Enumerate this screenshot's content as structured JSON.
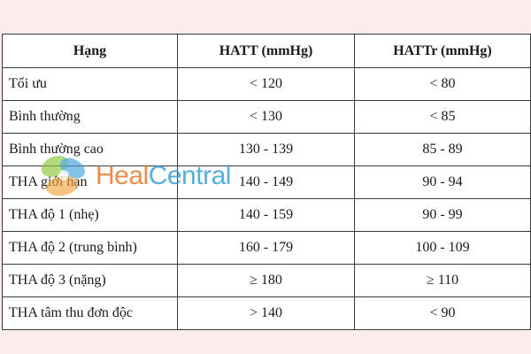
{
  "table": {
    "headers": [
      "Hạng",
      "HATT (mmHg)",
      "HATTr (mmHg)"
    ],
    "rows": [
      {
        "category": "Tối ưu",
        "systolic": "< 120",
        "diastolic": "< 80"
      },
      {
        "category": "Bình thường",
        "systolic": "< 130",
        "diastolic": "< 85"
      },
      {
        "category": "Bình thường cao",
        "systolic": "130 - 139",
        "diastolic": "85 - 89"
      },
      {
        "category": "THA giới hạn",
        "systolic": "140 - 149",
        "diastolic": "90 - 94"
      },
      {
        "category": "THA độ 1 (nhẹ)",
        "systolic": "140 - 159",
        "diastolic": "90 - 99"
      },
      {
        "category": "THA độ 2 (trung bình)",
        "systolic": "160 - 179",
        "diastolic": "100 - 109"
      },
      {
        "category": "THA độ 3 (nặng)",
        "systolic": "≥ 180",
        "diastolic": "≥ 110"
      },
      {
        "category": "THA tâm thu đơn độc",
        "systolic": "> 140",
        "diastolic": "< 90"
      }
    ]
  },
  "watermark": {
    "part1": "Heal",
    "part2": "Central",
    "colors": {
      "heal": "#e8792c",
      "central": "#3aa0d8",
      "leaf_green": "#8cc63f",
      "leaf_blue": "#3aa0d8",
      "leaf_orange": "#f0a23c"
    }
  },
  "colors": {
    "background": "#fbeceb",
    "border": "#3a3a3a",
    "text": "#1a1a1a"
  }
}
